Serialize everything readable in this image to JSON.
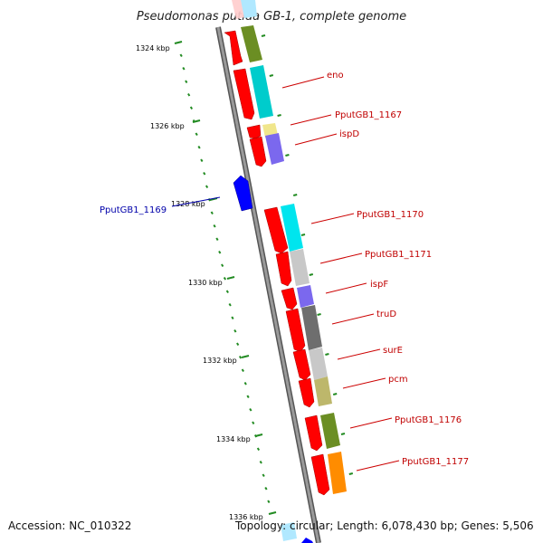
{
  "title": "Pseudomonas putida GB-1, complete genome",
  "ticks": [
    {
      "label": "1324 kbp"
    },
    {
      "label": "1326 kbp"
    },
    {
      "label": "1328 kbp"
    },
    {
      "label": "1330 kbp"
    },
    {
      "label": "1332 kbp"
    },
    {
      "label": "1334 kbp"
    },
    {
      "label": "1336 kbp"
    }
  ],
  "genes": [
    {
      "label": "eno",
      "color": "#cc0000"
    },
    {
      "label": "PputGB1_1167",
      "color": "#cc0000"
    },
    {
      "label": "ispD",
      "color": "#cc0000"
    },
    {
      "label": "PputGB1_1169",
      "color": "#0000aa"
    },
    {
      "label": "PputGB1_1170",
      "color": "#cc0000"
    },
    {
      "label": "PputGB1_1171",
      "color": "#cc0000"
    },
    {
      "label": "ispF",
      "color": "#cc0000"
    },
    {
      "label": "truD",
      "color": "#cc0000"
    },
    {
      "label": "surE",
      "color": "#cc0000"
    },
    {
      "label": "pcm",
      "color": "#cc0000"
    },
    {
      "label": "PputGB1_1176",
      "color": "#cc0000"
    },
    {
      "label": "PputGB1_1177",
      "color": "#cc0000"
    }
  ],
  "colors": {
    "forward_gene": "#ff0000",
    "reverse_gene": "#0000ff",
    "backbone": "#808080",
    "gc_skew_ticks": "#228b22",
    "cog_cyan": "#00cccc",
    "cog_olive": "#6b8e23",
    "cog_purple": "#7b68ee",
    "cog_gray": "#c0c0c0",
    "cog_darkgray": "#707070",
    "cog_khaki": "#bdb76b",
    "cog_orange": "#ff8c00",
    "cog_yellow": "#f0e68c"
  },
  "footer": {
    "accession": "Accession: NC_010322",
    "summary": "Topology: circular; Length: 6,078,430 bp; Genes: 5,506"
  }
}
